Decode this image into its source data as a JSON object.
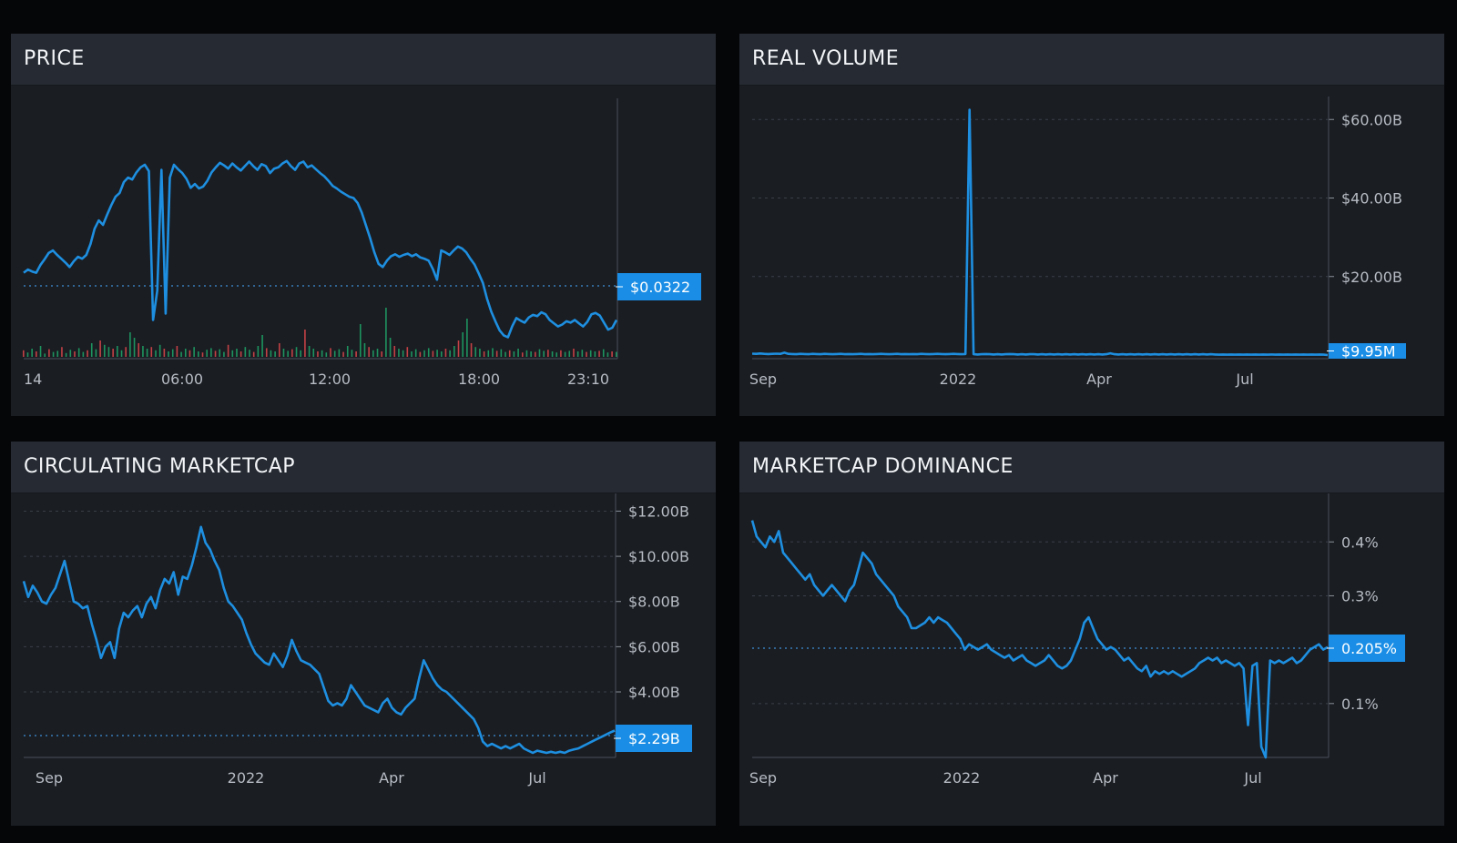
{
  "colors": {
    "background": "#050608",
    "panel": "#1a1d22",
    "header": "#262b33",
    "line": "#1e8fe0",
    "badge": "#1a8ee6",
    "grid": "#3a3f48",
    "up": "#1fa86a",
    "down": "#e0484b"
  },
  "panels": {
    "price": {
      "title": "PRICE",
      "chart_data": {
        "type": "line",
        "x_ticks": [
          "14",
          "06:00",
          "12:00",
          "18:00",
          "23:10"
        ],
        "last_value": 0.0322,
        "last_label": "$0.0322",
        "grid": false,
        "has_volume_bars": true,
        "series": [
          {
            "values": [
              0.0396,
              0.0401,
              0.0398,
              0.0396,
              0.0408,
              0.0417,
              0.0427,
              0.0431,
              0.0424,
              0.0418,
              0.0412,
              0.0405,
              0.0414,
              0.0421,
              0.0418,
              0.0424,
              0.0441,
              0.0465,
              0.0478,
              0.0471,
              0.0487,
              0.0502,
              0.0515,
              0.0521,
              0.0538,
              0.0545,
              0.0542,
              0.0553,
              0.0561,
              0.0565,
              0.0555,
              0.0322,
              0.0368,
              0.0557,
              0.0332,
              0.0545,
              0.0565,
              0.0558,
              0.0552,
              0.0543,
              0.0529,
              0.0535,
              0.0528,
              0.0531,
              0.054,
              0.0553,
              0.0561,
              0.0568,
              0.0564,
              0.0559,
              0.0567,
              0.0561,
              0.0556,
              0.0563,
              0.057,
              0.0563,
              0.0557,
              0.0566,
              0.0563,
              0.0552,
              0.0559,
              0.0561,
              0.0567,
              0.0571,
              0.0563,
              0.0557,
              0.0567,
              0.057,
              0.0561,
              0.0564,
              0.0558,
              0.0552,
              0.0547,
              0.054,
              0.0532,
              0.0528,
              0.0523,
              0.0519,
              0.0515,
              0.0513,
              0.0505,
              0.049,
              0.047,
              0.045,
              0.0428,
              0.041,
              0.0405,
              0.0415,
              0.0422,
              0.0425,
              0.0421,
              0.0424,
              0.0426,
              0.0422,
              0.0425,
              0.042,
              0.0418,
              0.0415,
              0.0402,
              0.0385,
              0.0431,
              0.0428,
              0.0424,
              0.0431,
              0.0437,
              0.0434,
              0.0428,
              0.0418,
              0.0409,
              0.0395,
              0.038,
              0.0355,
              0.0335,
              0.032,
              0.0306,
              0.0298,
              0.0295,
              0.0312,
              0.0325,
              0.0321,
              0.0318,
              0.0326,
              0.033,
              0.0328,
              0.0334,
              0.0331,
              0.0322,
              0.0317,
              0.0312,
              0.0315,
              0.032,
              0.0318,
              0.0322,
              0.0317,
              0.0312,
              0.0319,
              0.0331,
              0.0333,
              0.0329,
              0.0318,
              0.0307,
              0.031,
              0.0322
            ]
          }
        ],
        "volume_ratios": [
          0.12,
          0.08,
          0.15,
          0.1,
          0.2,
          0.06,
          0.14,
          0.09,
          0.11,
          0.18,
          0.07,
          0.13,
          0.1,
          0.16,
          0.09,
          0.12,
          0.25,
          0.14,
          0.3,
          0.22,
          0.18,
          0.15,
          0.2,
          0.12,
          0.18,
          0.45,
          0.35,
          0.25,
          0.2,
          0.15,
          0.18,
          0.12,
          0.22,
          0.15,
          0.1,
          0.14,
          0.2,
          0.09,
          0.15,
          0.12,
          0.18,
          0.1,
          0.08,
          0.13,
          0.16,
          0.11,
          0.14,
          0.09,
          0.22,
          0.12,
          0.15,
          0.1,
          0.18,
          0.13,
          0.09,
          0.2,
          0.4,
          0.16,
          0.12,
          0.1,
          0.25,
          0.15,
          0.11,
          0.14,
          0.18,
          0.12,
          0.5,
          0.2,
          0.15,
          0.1,
          0.12,
          0.08,
          0.16,
          0.11,
          0.14,
          0.09,
          0.2,
          0.13,
          0.1,
          0.6,
          0.25,
          0.18,
          0.12,
          0.15,
          0.1,
          0.9,
          0.35,
          0.2,
          0.15,
          0.12,
          0.18,
          0.1,
          0.14,
          0.09,
          0.12,
          0.16,
          0.11,
          0.13,
          0.1,
          0.15,
          0.12,
          0.2,
          0.3,
          0.45,
          0.7,
          0.25,
          0.18,
          0.15,
          0.1,
          0.12,
          0.16,
          0.11,
          0.14,
          0.09,
          0.12,
          0.1,
          0.15,
          0.08,
          0.12,
          0.1,
          0.09,
          0.14,
          0.11,
          0.13,
          0.1,
          0.08,
          0.12,
          0.09,
          0.11,
          0.15,
          0.1,
          0.13,
          0.09,
          0.12,
          0.1,
          0.11,
          0.14,
          0.08,
          0.1,
          0.09
        ]
      }
    },
    "volume": {
      "title": "REAL VOLUME",
      "chart_data": {
        "type": "line",
        "x_ticks": [
          "Sep",
          "2022",
          "Apr",
          "Jul"
        ],
        "y_ticks": [
          "$60.00B",
          "$40.00B",
          "$20.00B"
        ],
        "ylim": [
          0,
          64
        ],
        "last_label": "$9.95M",
        "grid": true,
        "series": [
          {
            "values": [
              0.35,
              0.3,
              0.4,
              0.3,
              0.25,
              0.3,
              0.35,
              0.3,
              0.6,
              0.3,
              0.25,
              0.2,
              0.3,
              0.25,
              0.2,
              0.3,
              0.25,
              0.2,
              0.3,
              0.25,
              0.2,
              0.25,
              0.3,
              0.2,
              0.25,
              0.2,
              0.25,
              0.3,
              0.2,
              0.25,
              0.2,
              0.25,
              0.3,
              0.25,
              0.2,
              0.25,
              0.3,
              0.2,
              0.25,
              0.2,
              0.25,
              0.2,
              0.3,
              0.25,
              0.2,
              0.25,
              0.3,
              0.25,
              0.2,
              0.25,
              0.3,
              0.25,
              0.2,
              0.25,
              62.5,
              0.2,
              0.15,
              0.2,
              0.25,
              0.2,
              0.15,
              0.2,
              0.15,
              0.2,
              0.25,
              0.2,
              0.15,
              0.2,
              0.15,
              0.2,
              0.2,
              0.15,
              0.2,
              0.15,
              0.2,
              0.15,
              0.2,
              0.15,
              0.2,
              0.15,
              0.2,
              0.15,
              0.2,
              0.15,
              0.2,
              0.15,
              0.2,
              0.15,
              0.2,
              0.45,
              0.2,
              0.15,
              0.2,
              0.15,
              0.2,
              0.15,
              0.2,
              0.15,
              0.2,
              0.15,
              0.2,
              0.15,
              0.2,
              0.15,
              0.2,
              0.15,
              0.2,
              0.15,
              0.2,
              0.15,
              0.2,
              0.15,
              0.2,
              0.15,
              0.2,
              0.15,
              0.1,
              0.15,
              0.1,
              0.15,
              0.1,
              0.15,
              0.1,
              0.15,
              0.1,
              0.15,
              0.1,
              0.15,
              0.1,
              0.15,
              0.1,
              0.15,
              0.1,
              0.15,
              0.1,
              0.15,
              0.1,
              0.15,
              0.1,
              0.15,
              0.1,
              0.15,
              0.1,
              0.01
            ]
          }
        ]
      }
    },
    "marketcap": {
      "title": "CIRCULATING MARKETCAP",
      "chart_data": {
        "type": "area",
        "x_ticks": [
          "Sep",
          "2022",
          "Apr",
          "Jul"
        ],
        "y_ticks": [
          "$12.00B",
          "$10.00B",
          "$8.00B",
          "$6.00B",
          "$4.00B"
        ],
        "ylim": [
          1.1,
          12.3
        ],
        "last_value": 2.29,
        "last_label": "$2.29B",
        "grid": true,
        "series": [
          {
            "values": [
              8.9,
              8.2,
              8.7,
              8.4,
              8.0,
              7.9,
              8.3,
              8.6,
              9.2,
              9.8,
              8.9,
              8.0,
              7.9,
              7.7,
              7.8,
              7.0,
              6.3,
              5.5,
              6.0,
              6.2,
              5.5,
              6.8,
              7.5,
              7.3,
              7.6,
              7.8,
              7.3,
              7.9,
              8.2,
              7.7,
              8.5,
              9.0,
              8.8,
              9.3,
              8.3,
              9.1,
              9.0,
              9.6,
              10.4,
              11.3,
              10.6,
              10.3,
              9.8,
              9.4,
              8.6,
              8.0,
              7.8,
              7.5,
              7.2,
              6.6,
              6.1,
              5.7,
              5.5,
              5.3,
              5.2,
              5.7,
              5.4,
              5.1,
              5.6,
              6.3,
              5.8,
              5.4,
              5.3,
              5.2,
              5.0,
              4.8,
              4.2,
              3.6,
              3.4,
              3.5,
              3.4,
              3.7,
              4.3,
              4.0,
              3.7,
              3.4,
              3.3,
              3.2,
              3.1,
              3.5,
              3.7,
              3.3,
              3.1,
              3.0,
              3.3,
              3.5,
              3.7,
              4.6,
              5.4,
              5.0,
              4.6,
              4.3,
              4.1,
              4.0,
              3.8,
              3.6,
              3.4,
              3.2,
              3.0,
              2.8,
              2.4,
              1.8,
              1.6,
              1.7,
              1.6,
              1.5,
              1.6,
              1.5,
              1.6,
              1.7,
              1.5,
              1.4,
              1.3,
              1.4,
              1.35,
              1.3,
              1.35,
              1.3,
              1.35,
              1.3,
              1.4,
              1.45,
              1.5,
              1.6,
              1.7,
              1.8,
              1.9,
              2.0,
              2.1,
              2.2,
              2.29
            ]
          }
        ]
      }
    },
    "dominance": {
      "title": "MARKETCAP DOMINANCE",
      "chart_data": {
        "type": "area",
        "x_ticks": [
          "Sep",
          "2022",
          "Apr",
          "Jul"
        ],
        "y_ticks": [
          "0.4%",
          "0.3%",
          "0.1%"
        ],
        "ylim": [
          0.0,
          0.49
        ],
        "last_value": 0.205,
        "last_label": "0.205%",
        "grid": true,
        "series": [
          {
            "values": [
              0.44,
              0.41,
              0.4,
              0.39,
              0.41,
              0.4,
              0.42,
              0.38,
              0.37,
              0.36,
              0.35,
              0.34,
              0.33,
              0.34,
              0.32,
              0.31,
              0.3,
              0.31,
              0.32,
              0.31,
              0.3,
              0.29,
              0.31,
              0.32,
              0.35,
              0.38,
              0.37,
              0.36,
              0.34,
              0.33,
              0.32,
              0.31,
              0.3,
              0.28,
              0.27,
              0.26,
              0.24,
              0.24,
              0.245,
              0.25,
              0.26,
              0.25,
              0.26,
              0.255,
              0.25,
              0.24,
              0.23,
              0.22,
              0.2,
              0.21,
              0.205,
              0.2,
              0.205,
              0.21,
              0.2,
              0.195,
              0.19,
              0.185,
              0.19,
              0.18,
              0.185,
              0.19,
              0.18,
              0.175,
              0.17,
              0.175,
              0.18,
              0.19,
              0.18,
              0.17,
              0.165,
              0.17,
              0.18,
              0.2,
              0.22,
              0.25,
              0.26,
              0.24,
              0.22,
              0.21,
              0.2,
              0.205,
              0.2,
              0.19,
              0.18,
              0.185,
              0.175,
              0.165,
              0.16,
              0.17,
              0.15,
              0.16,
              0.155,
              0.16,
              0.155,
              0.16,
              0.155,
              0.15,
              0.155,
              0.16,
              0.165,
              0.175,
              0.18,
              0.185,
              0.18,
              0.185,
              0.175,
              0.18,
              0.175,
              0.17,
              0.175,
              0.165,
              0.06,
              0.17,
              0.175,
              0.02,
              0.0,
              0.18,
              0.175,
              0.18,
              0.175,
              0.18,
              0.185,
              0.175,
              0.18,
              0.19,
              0.2,
              0.205,
              0.21,
              0.2,
              0.205
            ]
          }
        ]
      }
    }
  }
}
